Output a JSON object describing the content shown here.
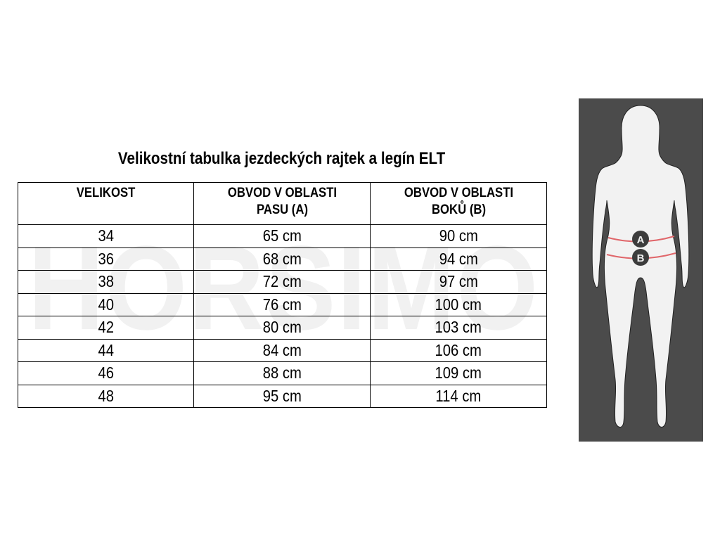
{
  "title": "Velikostní tabulka jezdeckých rajtek a legín ELT",
  "watermark": "HORSIMO",
  "table": {
    "headers": [
      "VELIKOST",
      "OBVOD V OBLASTI PASU (A)",
      "OBVOD V OBLASTI BOKŮ (B)"
    ],
    "rows": [
      [
        "34",
        "65 cm",
        "90 cm"
      ],
      [
        "36",
        "68 cm",
        "94 cm"
      ],
      [
        "38",
        "72 cm",
        "97 cm"
      ],
      [
        "40",
        "76 cm",
        "100 cm"
      ],
      [
        "42",
        "80 cm",
        "103 cm"
      ],
      [
        "44",
        "84 cm",
        "106 cm"
      ],
      [
        "46",
        "88 cm",
        "109 cm"
      ],
      [
        "48",
        "95 cm",
        "114 cm"
      ]
    ]
  },
  "figure": {
    "marker_a": "A",
    "marker_b": "B",
    "background": "#4b4b4b",
    "line_color": "#e0666a"
  }
}
